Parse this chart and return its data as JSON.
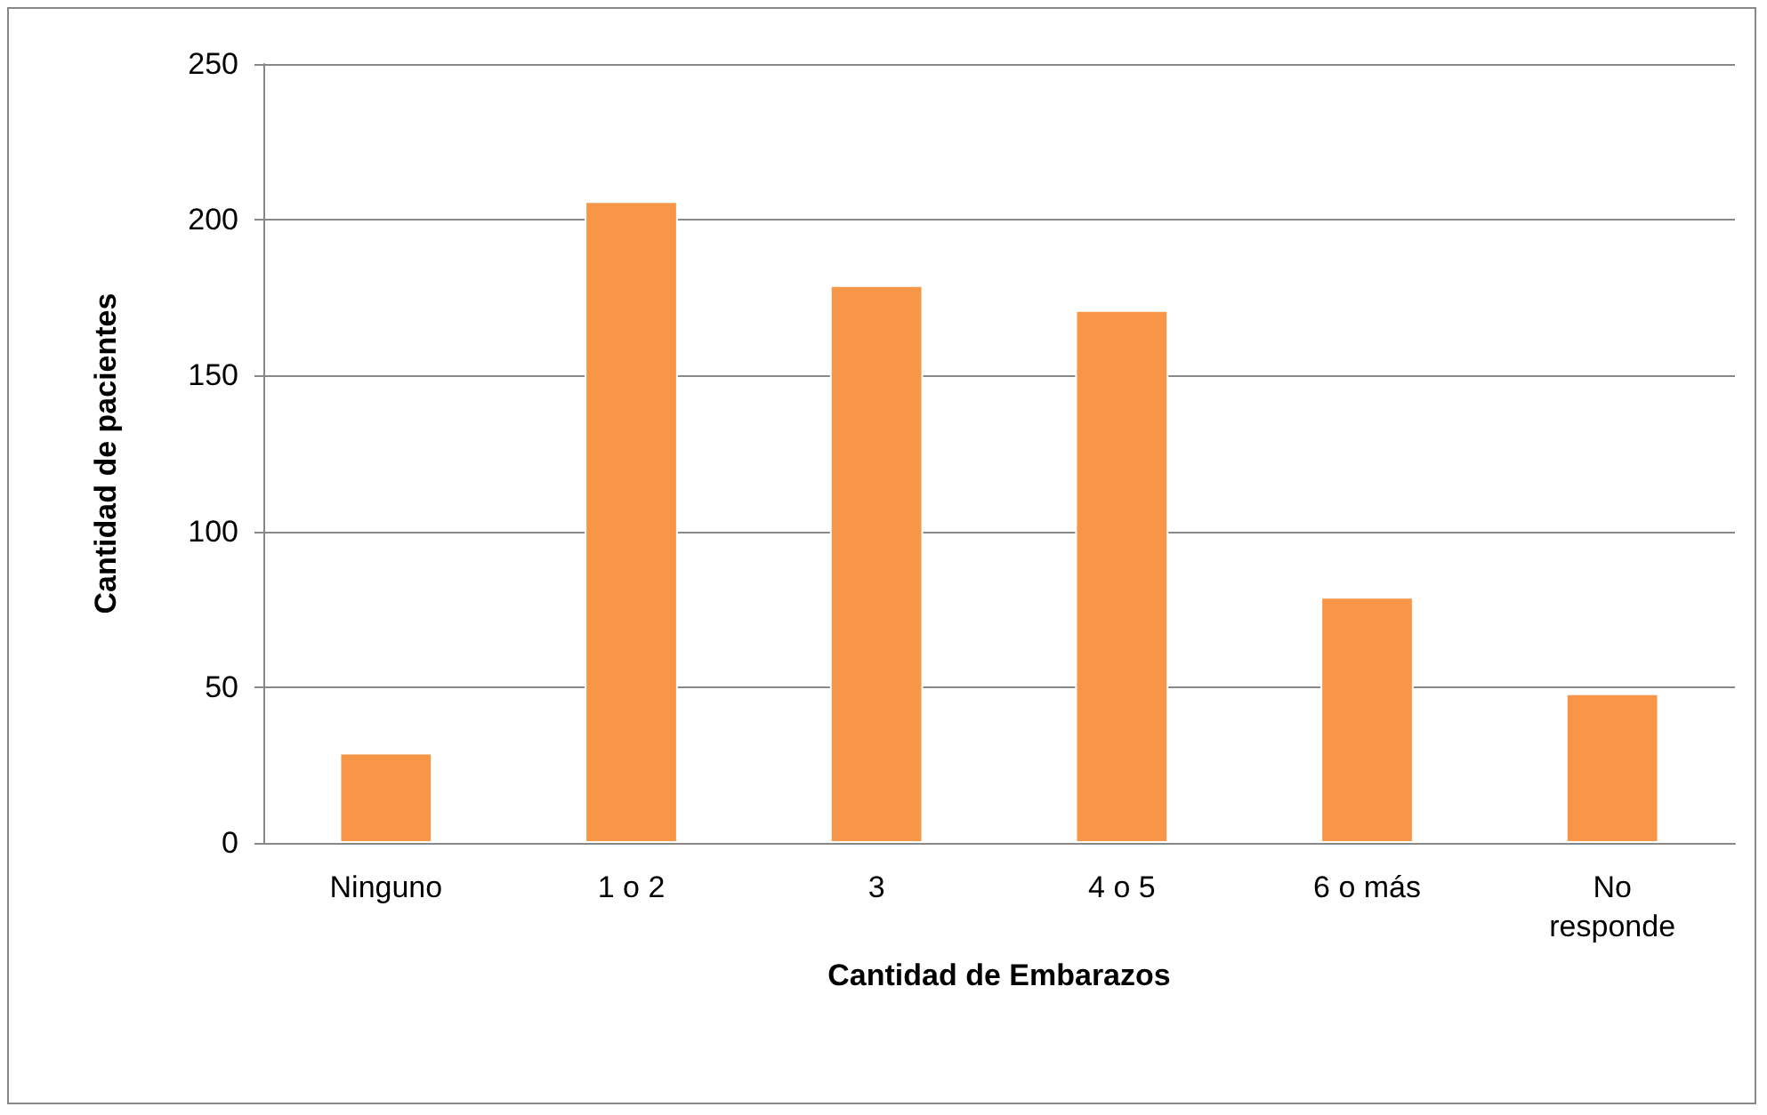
{
  "chart_data": {
    "type": "bar",
    "xlabel": "Cantidad de Embarazos",
    "ylabel": "Cantidad de pacientes",
    "categories": [
      "Ninguno",
      "1 o 2",
      "3",
      "4 o 5",
      "6 o más",
      "No\nresponde"
    ],
    "values": [
      29,
      206,
      179,
      171,
      79,
      48
    ],
    "color": "#f79646",
    "ylim": [
      0,
      250
    ],
    "yticks": [
      0,
      50,
      100,
      150,
      200,
      250
    ],
    "grid": "y"
  }
}
